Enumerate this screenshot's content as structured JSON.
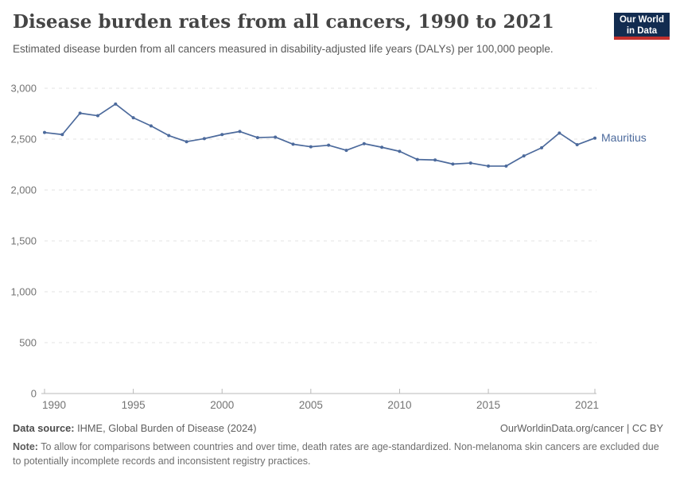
{
  "header": {
    "title": "Disease burden rates from all cancers, 1990 to 2021",
    "subtitle": "Estimated disease burden from all cancers measured in disability-adjusted life years (DALYs) per 100,000 people.",
    "logo": {
      "line1": "Our World",
      "line2": "in Data"
    }
  },
  "chart_data": {
    "type": "line",
    "title": "Disease burden rates from all cancers, 1990 to 2021",
    "xlabel": "",
    "ylabel": "DALYs per 100,000 people",
    "x": [
      1990,
      1991,
      1992,
      1993,
      1994,
      1995,
      1996,
      1997,
      1998,
      1999,
      2000,
      2001,
      2002,
      2003,
      2004,
      2005,
      2006,
      2007,
      2008,
      2009,
      2010,
      2011,
      2012,
      2013,
      2014,
      2015,
      2016,
      2017,
      2018,
      2019,
      2020,
      2021
    ],
    "series": [
      {
        "name": "Mauritius",
        "color": "#4c6a9c",
        "values": [
          2565,
          2545,
          2755,
          2730,
          2845,
          2710,
          2630,
          2535,
          2475,
          2505,
          2545,
          2575,
          2515,
          2520,
          2450,
          2425,
          2440,
          2390,
          2455,
          2420,
          2380,
          2300,
          2295,
          2255,
          2265,
          2235,
          2235,
          2335,
          2415,
          2560,
          2445,
          2510
        ]
      }
    ],
    "xlim": [
      1990,
      2021
    ],
    "ylim": [
      0,
      3000
    ],
    "xticks": [
      1990,
      1995,
      2000,
      2005,
      2010,
      2015,
      2021
    ],
    "yticks": [
      0,
      500,
      1000,
      1500,
      2000,
      2500,
      3000
    ],
    "grid": "horizontal-dashed",
    "legend": "entity-label-right-of-line",
    "colors": {
      "grid": "#e3e3e3",
      "axis": "#b9b9b9",
      "tick_label": "#737373"
    }
  },
  "footer": {
    "datasource_label": "Data source:",
    "datasource_value": " IHME, Global Burden of Disease (2024)",
    "rights": "OurWorldinData.org/cancer | CC BY",
    "note_label": "Note:",
    "note_text": " To allow for comparisons between countries and over time, death rates are age-standardized. Non-melanoma skin cancers are excluded due to potentially incomplete records and inconsistent registry practices."
  }
}
